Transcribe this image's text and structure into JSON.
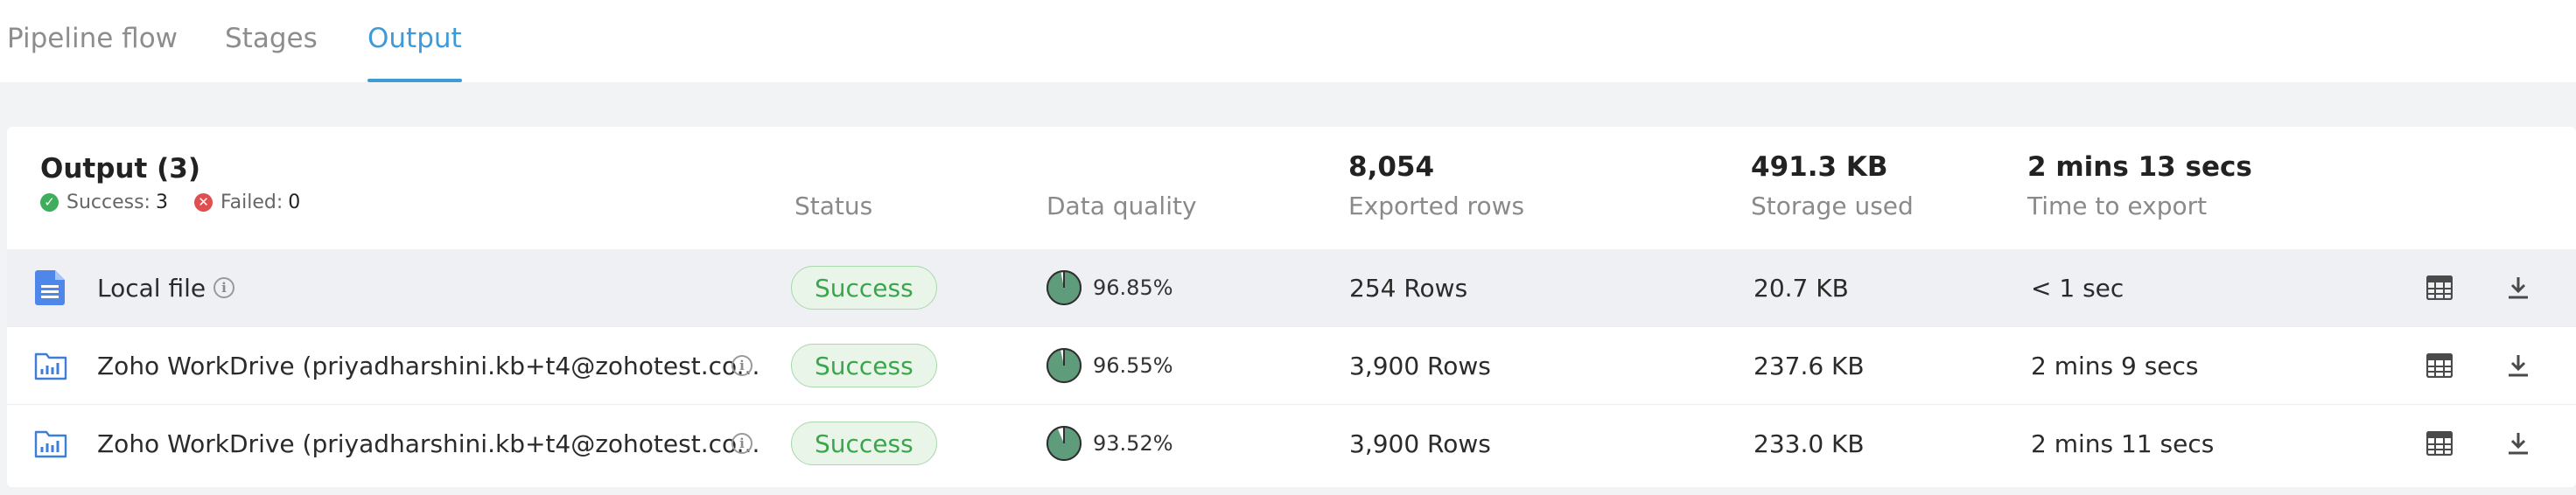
{
  "tabs": [
    {
      "label": "Pipeline flow",
      "active": false
    },
    {
      "label": "Stages",
      "active": false
    },
    {
      "label": "Output",
      "active": true
    }
  ],
  "summary": {
    "title": "Output (3)",
    "success_label": "Success:",
    "success_count": "3",
    "failed_label": "Failed:",
    "failed_count": "0",
    "status_header": "Status",
    "quality_header": "Data quality",
    "rows_value": "8,054",
    "rows_label": "Exported rows",
    "storage_value": "491.3 KB",
    "storage_label": "Storage used",
    "time_value": "2 mins 13 secs",
    "time_label": "Time to export"
  },
  "rows": [
    {
      "icon": "document-icon",
      "name": "Local file",
      "status": "Success",
      "quality": "96.85%",
      "quality_fraction": 0.9685,
      "rows": "254 Rows",
      "storage": "20.7 KB",
      "time": "< 1 sec"
    },
    {
      "icon": "workdrive-icon",
      "name": "Zoho WorkDrive (priyadharshini.kb+t4@zohotest.co...",
      "status": "Success",
      "quality": "96.55%",
      "quality_fraction": 0.9655,
      "rows": "3,900 Rows",
      "storage": "237.6 KB",
      "time": "2 mins 9 secs"
    },
    {
      "icon": "workdrive-icon",
      "name": "Zoho WorkDrive (priyadharshini.kb+t4@zohotest.co...",
      "status": "Success",
      "quality": "93.52%",
      "quality_fraction": 0.9352,
      "rows": "3,900 Rows",
      "storage": "233.0 KB",
      "time": "2 mins 11 secs"
    }
  ],
  "colors": {
    "accent": "#3f9bd8",
    "success": "#3aa64c",
    "failed": "#df4f4f",
    "quality_fill": "#5f9c7c"
  }
}
